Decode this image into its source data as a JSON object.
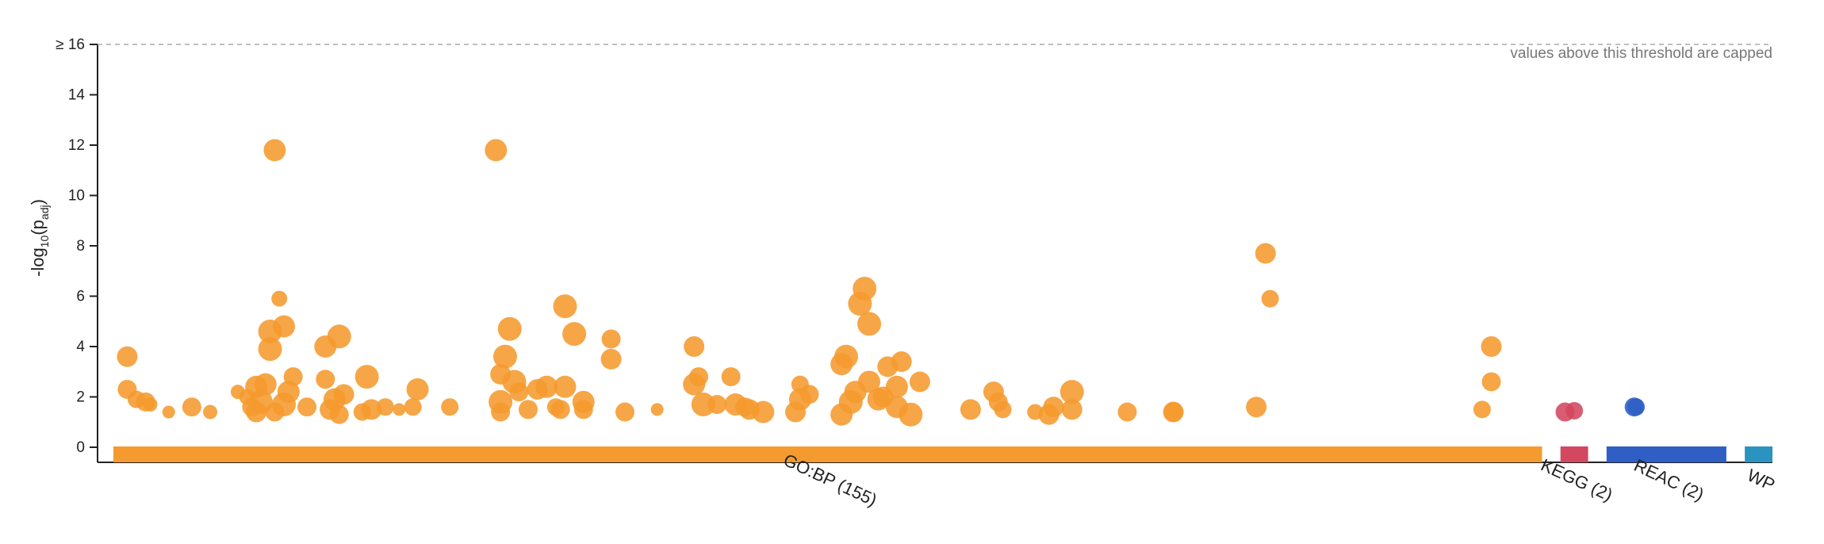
{
  "chart_data": {
    "type": "scatter",
    "ylabel": {
      "main": "-log",
      "sub_10": "10",
      "paren_open": "(p",
      "sub_adj": "adj",
      "paren_close": ")"
    },
    "ylim": [
      0,
      16
    ],
    "yticks": [
      "0",
      "2",
      "4",
      "6",
      "8",
      "10",
      "12",
      "14",
      "≥ 16"
    ],
    "threshold_note": "values above this threshold are capped",
    "grid": false,
    "colors": {
      "GO:BP": "#f59a2e",
      "KEGG": "#d3475f",
      "REAC": "#2f5fc4",
      "WP": "#2a93bf"
    },
    "categories": [
      {
        "key": "GO:BP",
        "label": "GO:BP (155)",
        "start": 0,
        "end": 155
      },
      {
        "key": "KEGG",
        "label": "KEGG (2)",
        "start": 157,
        "end": 160
      },
      {
        "key": "REAC",
        "label": "REAC (2)",
        "start": 162,
        "end": 175
      },
      {
        "key": "WP",
        "label": "WP",
        "start": 177,
        "end": 180
      }
    ],
    "series": [
      {
        "name": "GO:BP",
        "points": [
          [
            1.5,
            3.6,
            13
          ],
          [
            1.5,
            2.3,
            12
          ],
          [
            2.5,
            1.9,
            11
          ],
          [
            3.5,
            1.8,
            12
          ],
          [
            4,
            1.7,
            9
          ],
          [
            6,
            1.4,
            8
          ],
          [
            8.5,
            1.6,
            12
          ],
          [
            10.5,
            1.4,
            9
          ],
          [
            13.5,
            2.2,
            9
          ],
          [
            14.5,
            2.0,
            10
          ],
          [
            15,
            1.6,
            12
          ],
          [
            15.5,
            2.4,
            14
          ],
          [
            15.5,
            1.4,
            13
          ],
          [
            16,
            1.8,
            15
          ],
          [
            16.5,
            2.5,
            14
          ],
          [
            17,
            3.9,
            15
          ],
          [
            17,
            4.6,
            15
          ],
          [
            17.5,
            1.4,
            12
          ],
          [
            17.5,
            11.8,
            14
          ],
          [
            18,
            5.9,
            10
          ],
          [
            18.5,
            4.8,
            14
          ],
          [
            18.5,
            1.7,
            15
          ],
          [
            19,
            2.2,
            14
          ],
          [
            19.5,
            2.8,
            12
          ],
          [
            21,
            1.6,
            12
          ],
          [
            23,
            4.0,
            14
          ],
          [
            23,
            2.7,
            12
          ],
          [
            23.5,
            1.5,
            13
          ],
          [
            24,
            1.9,
            14
          ],
          [
            24.5,
            4.4,
            15
          ],
          [
            24.5,
            1.3,
            12
          ],
          [
            25,
            2.1,
            13
          ],
          [
            27,
            1.4,
            11
          ],
          [
            27.5,
            2.8,
            15
          ],
          [
            28,
            1.5,
            13
          ],
          [
            29.5,
            1.6,
            11
          ],
          [
            31,
            1.5,
            8
          ],
          [
            32.5,
            1.6,
            11
          ],
          [
            33,
            2.3,
            14
          ],
          [
            36.5,
            1.6,
            11
          ],
          [
            41.5,
            11.8,
            14
          ],
          [
            42,
            1.8,
            15
          ],
          [
            42,
            1.4,
            12
          ],
          [
            42,
            2.9,
            13
          ],
          [
            42.5,
            3.6,
            15
          ],
          [
            43,
            4.7,
            15
          ],
          [
            43.5,
            2.6,
            15
          ],
          [
            44,
            2.2,
            12
          ],
          [
            45,
            1.5,
            12
          ],
          [
            46,
            2.3,
            13
          ],
          [
            47,
            2.4,
            14
          ],
          [
            48,
            1.6,
            11
          ],
          [
            48.5,
            1.5,
            12
          ],
          [
            49,
            2.4,
            14
          ],
          [
            49,
            5.6,
            15
          ],
          [
            50,
            4.5,
            15
          ],
          [
            51,
            1.5,
            12
          ],
          [
            51,
            1.8,
            14
          ],
          [
            54,
            4.3,
            12
          ],
          [
            54,
            3.5,
            13
          ],
          [
            55.5,
            1.4,
            12
          ],
          [
            59,
            1.5,
            8
          ],
          [
            63,
            4.0,
            13
          ],
          [
            63,
            2.5,
            14
          ],
          [
            63.5,
            2.8,
            12
          ],
          [
            64,
            1.7,
            15
          ],
          [
            65.5,
            1.7,
            12
          ],
          [
            67,
            2.8,
            12
          ],
          [
            67.5,
            1.7,
            14
          ],
          [
            68.5,
            1.6,
            12
          ],
          [
            69,
            1.5,
            13
          ],
          [
            70.5,
            1.4,
            14
          ],
          [
            74,
            1.4,
            13
          ],
          [
            74.5,
            2.5,
            11
          ],
          [
            74.5,
            1.9,
            14
          ],
          [
            75.5,
            2.1,
            12
          ],
          [
            79,
            1.3,
            14
          ],
          [
            79,
            3.3,
            14
          ],
          [
            79.5,
            3.6,
            15
          ],
          [
            80,
            1.8,
            15
          ],
          [
            80.5,
            2.2,
            14
          ],
          [
            81,
            5.7,
            15
          ],
          [
            81.5,
            6.3,
            15
          ],
          [
            82,
            4.9,
            15
          ],
          [
            82,
            2.6,
            14
          ],
          [
            83,
            1.9,
            14
          ],
          [
            83.5,
            2.0,
            13
          ],
          [
            84,
            3.2,
            13
          ],
          [
            85,
            1.6,
            14
          ],
          [
            85,
            2.4,
            14
          ],
          [
            85.5,
            3.4,
            13
          ],
          [
            86.5,
            1.3,
            15
          ],
          [
            87.5,
            2.6,
            13
          ],
          [
            93,
            1.5,
            13
          ],
          [
            95.5,
            2.2,
            13
          ],
          [
            96,
            1.8,
            12
          ],
          [
            96.5,
            1.5,
            11
          ],
          [
            100,
            1.4,
            10
          ],
          [
            101.5,
            1.3,
            13
          ],
          [
            102,
            1.6,
            13
          ],
          [
            104,
            2.2,
            15
          ],
          [
            104,
            1.5,
            13
          ],
          [
            110,
            1.4,
            12
          ],
          [
            115,
            1.4,
            13
          ],
          [
            115,
            1.4,
            12
          ],
          [
            124,
            1.6,
            13
          ],
          [
            125,
            7.7,
            13
          ],
          [
            125.5,
            5.9,
            11
          ],
          [
            148.5,
            1.5,
            11
          ],
          [
            149.5,
            4.0,
            13
          ],
          [
            149.5,
            2.6,
            12
          ]
        ]
      },
      {
        "name": "KEGG",
        "points": [
          [
            157.5,
            1.4,
            12
          ],
          [
            158.5,
            1.45,
            11
          ]
        ]
      },
      {
        "name": "REAC",
        "points": [
          [
            165,
            1.6,
            12
          ],
          [
            165.2,
            1.6,
            11
          ]
        ]
      },
      {
        "name": "WP",
        "points": []
      }
    ]
  }
}
